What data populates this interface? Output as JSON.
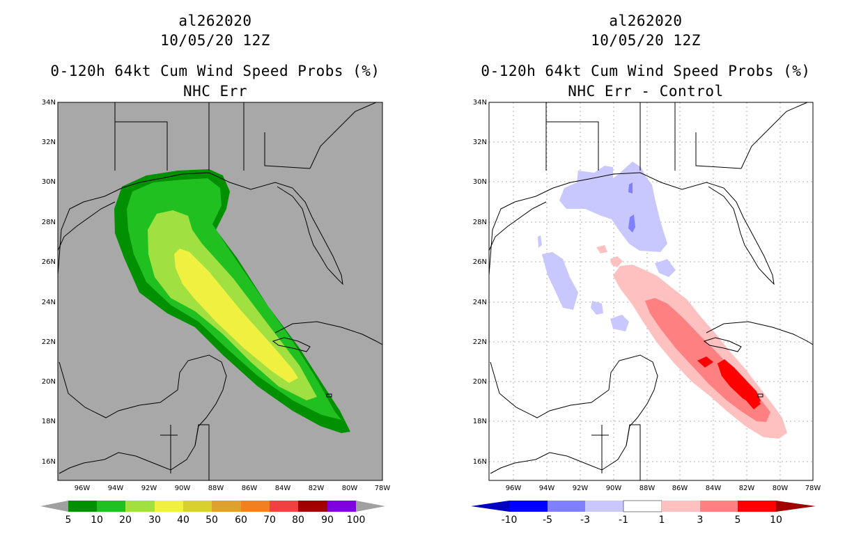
{
  "colors": {
    "land_bg": "#a8a8a8",
    "p5": "#009000",
    "p10": "#20c020",
    "p20": "#a0e040",
    "p30": "#f0f040",
    "p40": "#d8d030",
    "p50": "#e0a030",
    "p60": "#f08020",
    "p70": "#f04040",
    "p80": "#a00000",
    "p90": "#8000e0",
    "neg10": "#0000c0",
    "neg5": "#0000ff",
    "neg3": "#8080ff",
    "neg1": "#c8c8ff",
    "zero": "#ffffff",
    "pos1": "#ffc0c0",
    "pos3": "#ff8080",
    "pos5": "#ff0000",
    "pos10": "#a00000"
  },
  "left": {
    "storm_id": "al262020",
    "datetime": "10/05/20 12Z",
    "title": "0-120h 64kt Cum Wind Speed Probs (%)",
    "subtitle": "NHC Err",
    "lat_labels": [
      "34N",
      "32N",
      "30N",
      "28N",
      "26N",
      "24N",
      "22N",
      "20N",
      "18N",
      "16N"
    ],
    "lon_labels": [
      "96W",
      "94W",
      "92W",
      "90W",
      "88W",
      "86W",
      "84W",
      "82W",
      "80W",
      "78W"
    ],
    "colorbar_labels": [
      "5",
      "10",
      "20",
      "30",
      "40",
      "50",
      "60",
      "70",
      "80",
      "90",
      "100"
    ]
  },
  "right": {
    "storm_id": "al262020",
    "datetime": "10/05/20 12Z",
    "title": "0-120h 64kt Cum Wind Speed Probs (%)",
    "subtitle": "NHC Err - Control",
    "lat_labels": [
      "34N",
      "32N",
      "30N",
      "28N",
      "26N",
      "24N",
      "22N",
      "20N",
      "18N",
      "16N"
    ],
    "lon_labels": [
      "96W",
      "94W",
      "92W",
      "90W",
      "88W",
      "86W",
      "84W",
      "82W",
      "80W",
      "78W"
    ],
    "colorbar_labels": [
      "-10",
      "-5",
      "-3",
      "-1",
      "1",
      "3",
      "5",
      "10"
    ]
  }
}
